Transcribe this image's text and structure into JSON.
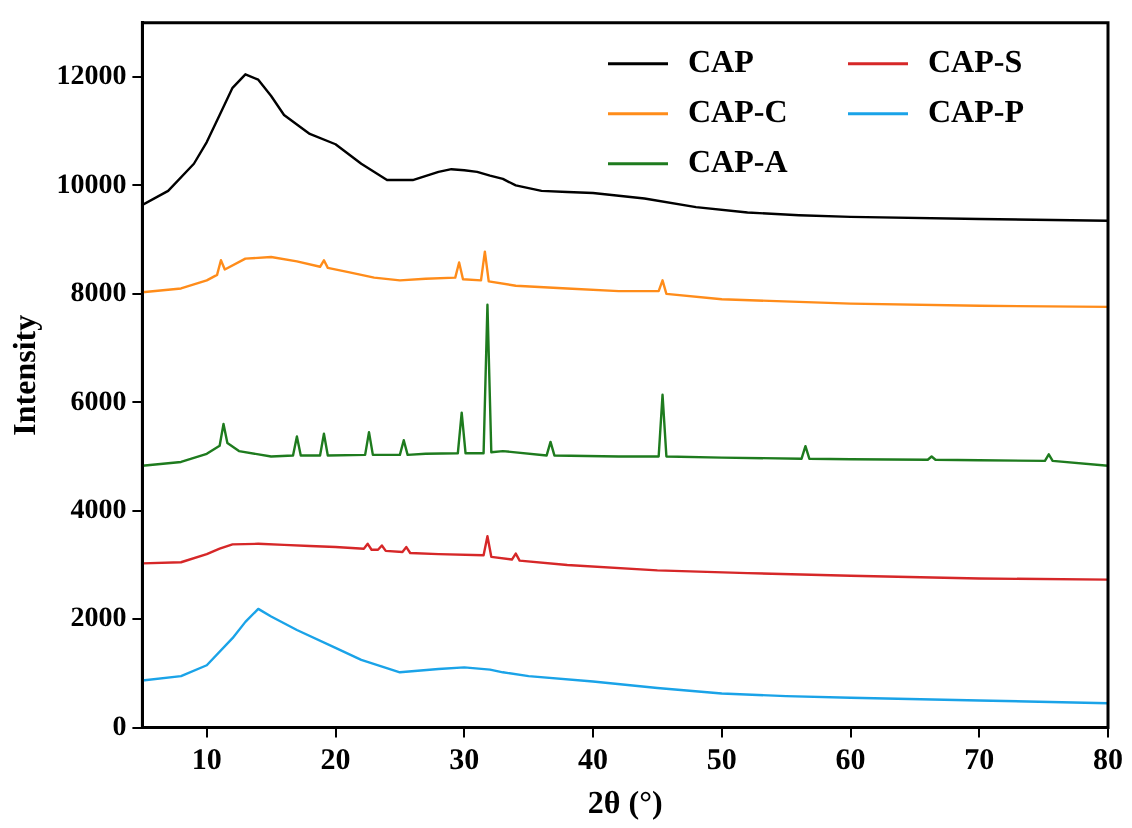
{
  "chart_data": {
    "type": "line",
    "xlabel": "2θ (°)",
    "ylabel": "Intensity",
    "xlim": [
      5,
      80
    ],
    "xticks": [
      10,
      20,
      30,
      40,
      50,
      60,
      70,
      80
    ],
    "ylim": [
      0,
      13000
    ],
    "yticks": [
      0,
      2000,
      4000,
      6000,
      8000,
      10000,
      12000
    ],
    "grid": false,
    "legend": "top right",
    "marker": "none",
    "line_style": "solid",
    "series": [
      {
        "name": "CAP",
        "color": "#000000",
        "x": [
          5,
          7,
          9,
          10,
          11,
          12,
          13,
          14,
          15,
          16,
          18,
          20,
          22,
          24,
          26,
          28,
          29,
          30,
          31,
          32,
          33,
          34,
          36,
          38,
          40,
          44,
          48,
          52,
          56,
          60,
          70,
          80
        ],
        "values": [
          9640,
          9900,
          10400,
          10800,
          11300,
          11800,
          12050,
          11950,
          11650,
          11300,
          10950,
          10760,
          10400,
          10100,
          10100,
          10250,
          10300,
          10280,
          10250,
          10180,
          10120,
          10000,
          9900,
          9880,
          9860,
          9760,
          9600,
          9500,
          9450,
          9420,
          9380,
          9350
        ]
      },
      {
        "name": "CAP-S",
        "color": "#d62728",
        "x": [
          5,
          8,
          10,
          11,
          12,
          14,
          16,
          18,
          20,
          22.2,
          22.5,
          22.8,
          23.3,
          23.6,
          23.9,
          25.2,
          25.5,
          25.8,
          28,
          31.5,
          31.8,
          32.1,
          33.7,
          34,
          34.3,
          38,
          45,
          52,
          60,
          70,
          80
        ],
        "values": [
          3030,
          3050,
          3200,
          3300,
          3380,
          3390,
          3370,
          3350,
          3330,
          3300,
          3390,
          3280,
          3280,
          3360,
          3260,
          3240,
          3330,
          3220,
          3200,
          3180,
          3530,
          3150,
          3100,
          3210,
          3080,
          3000,
          2900,
          2850,
          2800,
          2750,
          2730
        ]
      },
      {
        "name": "CAP-C",
        "color": "#ff8c1a",
        "x": [
          5,
          8,
          10,
          10.8,
          11.1,
          11.4,
          13,
          15,
          17,
          18.8,
          19.1,
          19.4,
          21,
          23,
          25,
          27,
          29.3,
          29.6,
          29.9,
          31.3,
          31.6,
          31.9,
          34,
          38,
          42,
          45.1,
          45.4,
          45.7,
          50,
          60,
          70,
          80
        ],
        "values": [
          8030,
          8100,
          8250,
          8350,
          8620,
          8450,
          8650,
          8680,
          8600,
          8500,
          8620,
          8480,
          8400,
          8300,
          8250,
          8280,
          8300,
          8580,
          8270,
          8250,
          8780,
          8230,
          8150,
          8100,
          8050,
          8050,
          8250,
          8000,
          7900,
          7820,
          7780,
          7760
        ]
      },
      {
        "name": "CAP-P",
        "color": "#1aa3e8",
        "x": [
          5,
          8,
          10,
          12,
          13,
          14,
          15,
          17,
          20,
          22,
          25,
          28,
          30,
          32,
          33,
          35,
          40,
          45,
          50,
          55,
          60,
          70,
          80
        ],
        "values": [
          870,
          950,
          1150,
          1650,
          1950,
          2190,
          2050,
          1800,
          1470,
          1250,
          1020,
          1080,
          1110,
          1070,
          1020,
          950,
          850,
          730,
          630,
          580,
          550,
          500,
          450
        ]
      },
      {
        "name": "CAP-A",
        "color": "#1e7b1e",
        "x": [
          5,
          8,
          10,
          11,
          11.3,
          11.6,
          12.5,
          15,
          16.7,
          17,
          17.3,
          18.8,
          19.1,
          19.4,
          22.3,
          22.6,
          22.9,
          25,
          25.3,
          25.6,
          27,
          29.5,
          29.8,
          30.1,
          31.5,
          31.8,
          32.1,
          33,
          36.4,
          36.7,
          37,
          42,
          45.1,
          45.4,
          45.7,
          50,
          56.2,
          56.5,
          56.8,
          60,
          66,
          66.3,
          66.6,
          70,
          75.1,
          75.4,
          75.7,
          80
        ],
        "values": [
          4830,
          4900,
          5050,
          5200,
          5600,
          5250,
          5100,
          5000,
          5020,
          5370,
          5020,
          5020,
          5420,
          5020,
          5030,
          5450,
          5030,
          5030,
          5300,
          5030,
          5050,
          5060,
          5810,
          5060,
          5060,
          7800,
          5080,
          5100,
          5020,
          5270,
          5020,
          5000,
          5000,
          6140,
          5000,
          4980,
          4960,
          5190,
          4960,
          4950,
          4940,
          5000,
          4940,
          4930,
          4920,
          5040,
          4920,
          4830
        ]
      }
    ]
  }
}
